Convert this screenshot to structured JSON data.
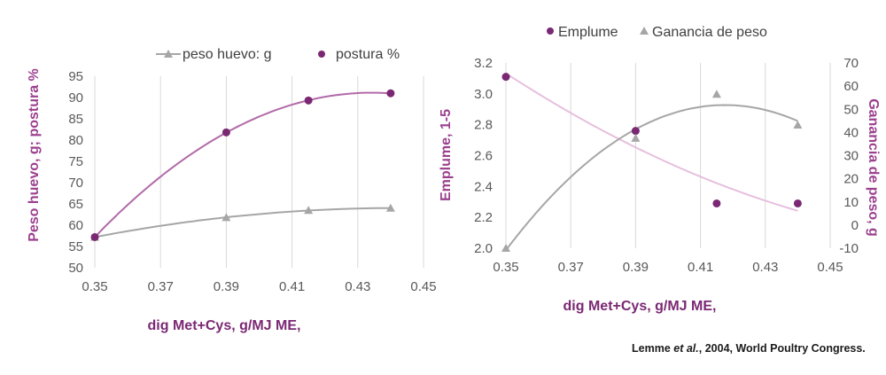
{
  "chart_data": [
    {
      "type": "line",
      "xlabel": "dig Met+Cys, g/MJ ME,",
      "ylabel": "Peso huevo, g; postura %",
      "xlim": [
        0.35,
        0.45
      ],
      "ylim": [
        50,
        95
      ],
      "xticks": [
        "0.35",
        "0.37",
        "0.39",
        "0.41",
        "0.43",
        "0.45"
      ],
      "yticks": [
        "50",
        "55",
        "60",
        "65",
        "70",
        "75",
        "80",
        "85",
        "90",
        "95"
      ],
      "grid": "vertical",
      "legend_position": "top",
      "series": [
        {
          "name": "peso huevo: g",
          "marker": "triangle",
          "color": "#a6a6a6",
          "x": [
            0.35,
            0.39,
            0.415,
            0.44
          ],
          "y": [
            57.2,
            61.8,
            63.5,
            64.0
          ]
        },
        {
          "name": "postura %",
          "marker": "circle",
          "color": "#7a2873",
          "line_color": "#b26aa8",
          "x": [
            0.35,
            0.39,
            0.415,
            0.44
          ],
          "y": [
            57.2,
            81.8,
            89.3,
            91.0
          ]
        }
      ]
    },
    {
      "type": "line",
      "xlabel": "dig Met+Cys, g/MJ ME,",
      "ylabel": "Emplume, 1-5",
      "y2label": "Ganancia de peso, g",
      "xlim": [
        0.35,
        0.45
      ],
      "ylim": [
        2.0,
        3.2
      ],
      "y2lim": [
        -10,
        70
      ],
      "xticks": [
        "0.35",
        "0.37",
        "0.39",
        "0.41",
        "0.43",
        "0.45"
      ],
      "yticks": [
        "2.0",
        "2.2",
        "2.4",
        "2.6",
        "2.8",
        "3.0",
        "3.2"
      ],
      "y2ticks": [
        "-10",
        "0",
        "10",
        "20",
        "30",
        "40",
        "50",
        "60",
        "70"
      ],
      "grid": "vertical",
      "legend_position": "top",
      "series": [
        {
          "name": "Emplume",
          "marker": "circle",
          "color": "#7a2873",
          "line_color": "#e6bfdf",
          "axis": "left",
          "x": [
            0.35,
            0.39,
            0.415,
            0.44
          ],
          "y": [
            3.11,
            2.76,
            2.29,
            2.29
          ]
        },
        {
          "name": "Ganancia de peso",
          "marker": "triangle",
          "color": "#a6a6a6",
          "axis": "right",
          "x": [
            0.35,
            0.39,
            0.415,
            0.44
          ],
          "y": [
            -10,
            37.5,
            56.5,
            43.2
          ]
        }
      ]
    }
  ],
  "citation": {
    "authors": "Lemme",
    "etal": "et al.",
    "rest": ", 2004, World Poultry Congress."
  }
}
